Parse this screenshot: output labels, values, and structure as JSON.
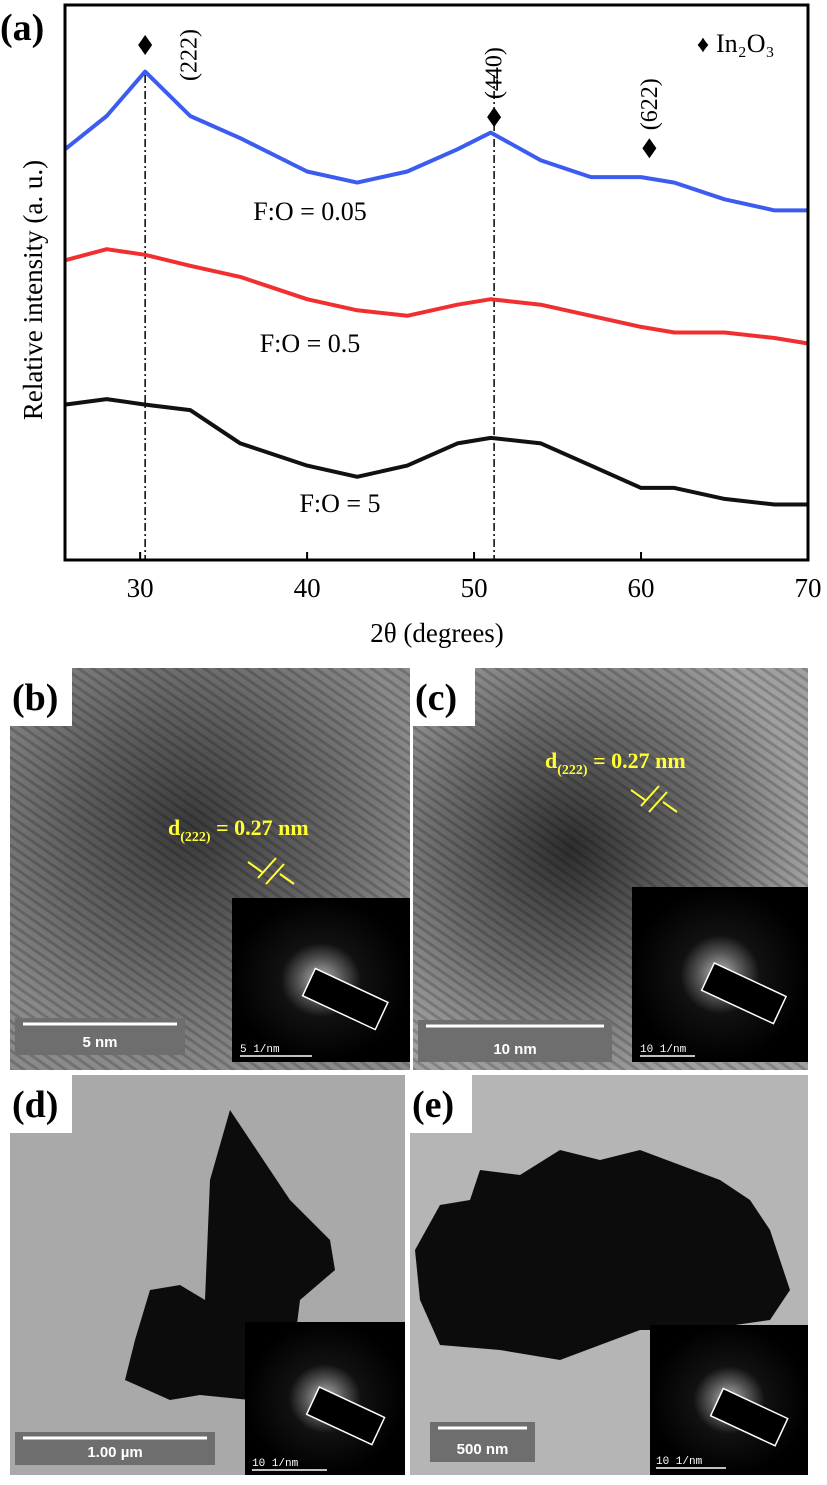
{
  "chart_data": {
    "type": "line",
    "panel_label": "(a)",
    "x_label": "2θ (degrees)",
    "y_label": "Relative intensity (a. u.)",
    "legend": {
      "symbol": "♦",
      "text": "In₂O₃"
    },
    "xlim": [
      25.5,
      70
    ],
    "xticks": [
      30,
      40,
      50,
      60,
      70
    ],
    "ylim": [
      0,
      100
    ],
    "x": [
      25.5,
      28,
      30.3,
      33,
      36,
      40,
      43,
      46,
      49,
      51,
      54,
      57,
      60,
      62,
      65,
      68,
      70
    ],
    "series": [
      {
        "name": "F:O = 0.05",
        "color": "#3c5cf0",
        "values": [
          74,
          80,
          88,
          80,
          76,
          70,
          68,
          70,
          74,
          77,
          72,
          69,
          69,
          68,
          65,
          63,
          63
        ]
      },
      {
        "name": "F:O = 0.5",
        "color": "#f03030",
        "values": [
          54,
          56,
          55,
          53,
          51,
          47,
          45,
          44,
          46,
          47,
          46,
          44,
          42,
          41,
          41,
          40,
          39
        ]
      },
      {
        "name": "F:O = 5",
        "color": "#111111",
        "values": [
          28,
          29,
          28,
          27,
          21,
          17,
          15,
          17,
          21,
          22,
          21,
          17,
          13,
          13,
          11,
          10,
          10
        ]
      }
    ],
    "reference_lines": [
      30.3,
      51.2
    ],
    "peaks": [
      {
        "label": "(222)",
        "x": 30.3,
        "y": 92.8
      },
      {
        "label": "(440)",
        "x": 51.2,
        "y": 79.8
      },
      {
        "label": "(622)",
        "x": 60.5,
        "y": 74.2
      }
    ]
  },
  "figure": {
    "panels": [
      {
        "label": "(b)",
        "scale_bar": "5 nm",
        "inset_scale_bar": "5 1/nm",
        "spacing": {
          "symbol": "d",
          "subscript": "(222)",
          "text": " = 0.27 nm"
        }
      },
      {
        "label": "(c)",
        "scale_bar": "10 nm",
        "inset_scale_bar": "10 1/nm",
        "spacing": {
          "symbol": "d",
          "subscript": "(222)",
          "text": " = 0.27 nm"
        }
      },
      {
        "label": "(d)",
        "scale_bar": "1.00 µm",
        "inset_scale_bar": "10 1/nm"
      },
      {
        "label": "(e)",
        "scale_bar": "500 nm",
        "inset_scale_bar": "10 1/nm"
      }
    ]
  }
}
